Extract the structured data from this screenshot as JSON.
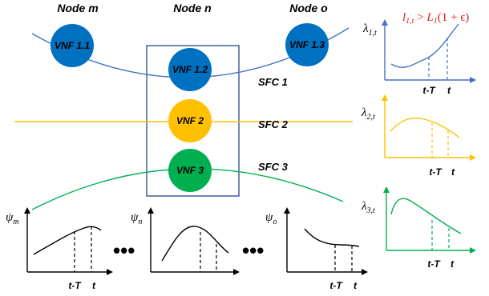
{
  "nodes": {
    "m": "Node m",
    "n": "Node n",
    "o": "Node o"
  },
  "vnfs": {
    "v11": "VNF 1.1",
    "v12": "VNF 1.2",
    "v13": "VNF 1.3",
    "v2": "VNF 2",
    "v3": "VNF 3"
  },
  "sfcs": {
    "s1": "SFC 1",
    "s2": "SFC 2",
    "s3": "SFC 3"
  },
  "lambda_plots": [
    {
      "symbol": "λ",
      "subscript": "1,t",
      "tick_a": "t-T",
      "tick_b": "t"
    },
    {
      "symbol": "λ",
      "subscript": "2,t",
      "tick_a": "t-T",
      "tick_b": "t"
    },
    {
      "symbol": "λ",
      "subscript": "3,t",
      "tick_a": "t-T",
      "tick_b": "t"
    }
  ],
  "psi_plots": [
    {
      "symbol": "ψ",
      "subscript": "m",
      "tick_a": "t-T",
      "tick_b": "t"
    },
    {
      "symbol": "ψ",
      "subscript": "n",
      "tick_a": "",
      "tick_b": ""
    },
    {
      "symbol": "ψ",
      "subscript": "o",
      "tick_a": "t-T",
      "tick_b": "t"
    }
  ],
  "ellipsis": "•••",
  "condition": {
    "l": "l",
    "l_sub": "1,t",
    "gt": " > ",
    "L": "L",
    "L_sub": "1",
    "paren": "(1 + ϵ)"
  },
  "colors": {
    "vnf1": "#0070C0",
    "vnf2": "#FFC000",
    "vnf3": "#00B050",
    "sfc1": "#4472C4",
    "sfc2": "#FFC000",
    "sfc3": "#00B050",
    "box": "#2F5597",
    "condition": "#E02020"
  }
}
